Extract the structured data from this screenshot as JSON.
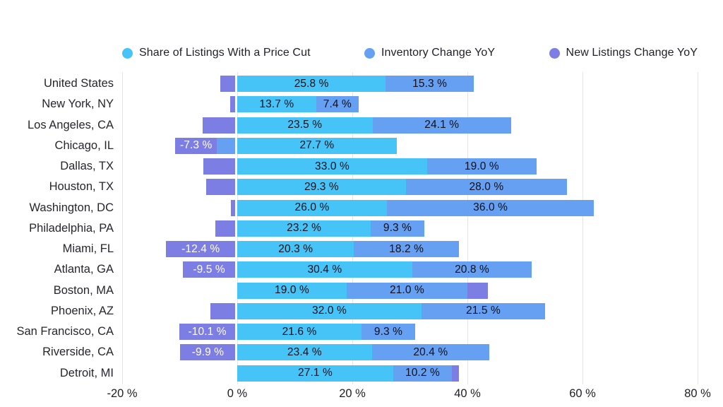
{
  "chart_data": {
    "type": "bar",
    "orientation": "horizontal",
    "stacked": true,
    "title": "",
    "legend_position": "top",
    "grid": true,
    "background": "#ffffff",
    "xlim": [
      -20,
      80
    ],
    "xticks": [
      {
        "value": -20,
        "label": "-20 %"
      },
      {
        "value": 0,
        "label": "0 %"
      },
      {
        "value": 20,
        "label": "20 %"
      },
      {
        "value": 40,
        "label": "40 %"
      },
      {
        "value": 60,
        "label": "60 %"
      },
      {
        "value": 80,
        "label": "80 %"
      }
    ],
    "categories": [
      "United States",
      "New York, NY",
      "Los Angeles, CA",
      "Chicago, IL",
      "Dallas, TX",
      "Houston, TX",
      "Washington, DC",
      "Philadelphia, PA",
      "Miami, FL",
      "Atlanta, GA",
      "Boston, MA",
      "Phoenix, AZ",
      "San Francisco, CA",
      "Riverside, CA",
      "Detroit, MI"
    ],
    "series": [
      {
        "name": "Share of Listings With a Price Cut",
        "color": "#47C4F7",
        "label_color": "#0f0f18",
        "values": [
          25.8,
          13.7,
          23.5,
          27.7,
          33.0,
          29.3,
          26.0,
          23.2,
          20.3,
          30.4,
          19.0,
          32.0,
          21.6,
          23.4,
          27.1
        ],
        "labels": [
          "25.8 %",
          "13.7 %",
          "23.5 %",
          "27.7 %",
          "33.0 %",
          "29.3 %",
          "26.0 %",
          "23.2 %",
          "20.3 %",
          "30.4 %",
          "19.0 %",
          "32.0 %",
          "21.6 %",
          "23.4 %",
          "27.1 %"
        ]
      },
      {
        "name": "Inventory Change YoY",
        "color": "#66A0F3",
        "label_color": "#0f0f18",
        "values": [
          15.3,
          7.4,
          24.1,
          -3.5,
          19.0,
          28.0,
          36.0,
          9.3,
          18.2,
          20.8,
          21.0,
          21.5,
          9.3,
          20.4,
          10.2
        ],
        "labels": [
          "15.3 %",
          "7.4 %",
          "24.1 %",
          "",
          "19.0 %",
          "28.0 %",
          "36.0 %",
          "9.3 %",
          "18.2 %",
          "20.8 %",
          "21.0 %",
          "21.5 %",
          "9.3 %",
          "20.4 %",
          "10.2 %"
        ]
      },
      {
        "name": "New Listings Change YoY",
        "color": "#7D7EE3",
        "label_color": "#ffffff",
        "values": [
          -2.9,
          -1.2,
          -6.0,
          -7.3,
          -5.9,
          -5.4,
          -1.1,
          -3.8,
          -12.4,
          -9.5,
          3.6,
          -4.7,
          -10.1,
          -9.9,
          1.2
        ],
        "labels": [
          "",
          "",
          "",
          "-7.3 %",
          "",
          "",
          "",
          "",
          "-12.4 %",
          "-9.5 %",
          "",
          "",
          "-10.1 %",
          "-9.9 %",
          ""
        ]
      }
    ]
  }
}
